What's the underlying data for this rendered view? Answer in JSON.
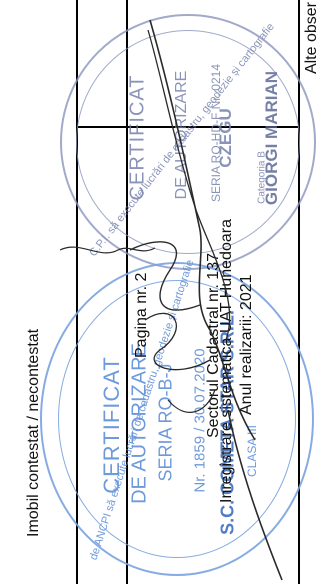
{
  "column_headers": {
    "alte_observatii": "Alte obser",
    "imobil_contestat": "Imobil contestat / necontestat"
  },
  "footer_info": {
    "page": "Pagina nr. 2",
    "registration": "Inregistrare sistematica UAT Hunedoara",
    "sector": "Sectorul Cadastral nr. 137",
    "year": "Anul realizarii: 2021"
  },
  "stamp_top": {
    "ring_text": "C.P.I. să execute lucrări de cadastru, geodezie și cartografie",
    "lines": [
      "CERTIFICAT",
      "DE AUTORIZARE",
      "SERIA RO-HD-F Nr. 0214",
      "CZEGU",
      "GIORGI MARIAN",
      "Categoria B"
    ],
    "color": "#6d7aa8"
  },
  "stamp_bottom": {
    "ring_text": "de ANCPI să execute lucrări de cadastru, geodezie și cartografie",
    "lines": [
      "CERTIFICAT",
      "DE AUTORIZARE",
      "SERIA RO-B-J",
      "Nr. 1859 / 30.07.2020",
      "S.C. COMETA STAR S.R.L.",
      "CLASA III"
    ],
    "color": "#5f8fd8"
  }
}
